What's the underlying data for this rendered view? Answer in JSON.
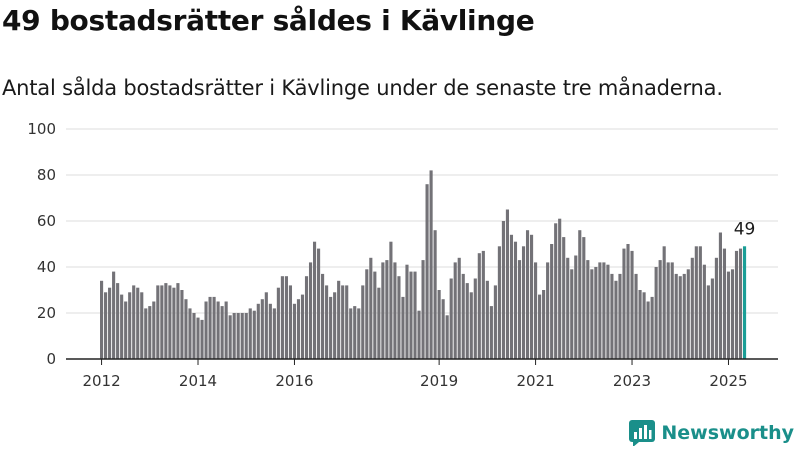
{
  "header": {
    "title": "49 bostadsrätter såldes i Kävlinge",
    "subtitle": "Antal sålda bostadsrätter i Kävlinge under de senaste tre månaderna."
  },
  "brand": {
    "name": "Newsworthy",
    "icon": "newsworthy-logo-icon"
  },
  "colors": {
    "bar": "#737277",
    "highlight": "#1a9e96",
    "grid": "#dddddd",
    "axis": "#222222",
    "brand": "#1a8f8a"
  },
  "chart_data": {
    "type": "bar",
    "x_tick_labels": [
      "2012",
      "2014",
      "2016",
      "2019",
      "2021",
      "2023",
      "2025"
    ],
    "x_tick_bar_index": [
      0,
      24,
      48,
      84,
      108,
      132,
      156
    ],
    "y_ticks": [
      0,
      20,
      40,
      60,
      80,
      100
    ],
    "ylim": [
      0,
      100
    ],
    "grid": true,
    "highlight_last": true,
    "last_value_label": "49",
    "values": [
      34,
      29,
      31,
      38,
      33,
      28,
      25,
      29,
      32,
      31,
      29,
      22,
      23,
      25,
      32,
      32,
      33,
      32,
      31,
      33,
      30,
      26,
      22,
      20,
      18,
      17,
      25,
      27,
      27,
      25,
      23,
      25,
      19,
      20,
      20,
      20,
      20,
      22,
      21,
      24,
      26,
      29,
      24,
      22,
      31,
      36,
      36,
      32,
      24,
      26,
      28,
      36,
      42,
      51,
      48,
      37,
      32,
      27,
      29,
      34,
      32,
      32,
      22,
      23,
      22,
      32,
      39,
      44,
      38,
      31,
      42,
      43,
      51,
      42,
      36,
      27,
      41,
      38,
      38,
      21,
      43,
      76,
      82,
      56,
      30,
      26,
      19,
      35,
      42,
      44,
      37,
      33,
      29,
      35,
      46,
      47,
      34,
      23,
      32,
      49,
      60,
      65,
      54,
      51,
      43,
      49,
      56,
      54,
      42,
      28,
      30,
      42,
      50,
      59,
      61,
      53,
      44,
      39,
      45,
      56,
      53,
      43,
      39,
      40,
      42,
      42,
      41,
      37,
      34,
      37,
      48,
      50,
      47,
      37,
      30,
      29,
      25,
      27,
      40,
      43,
      49,
      42,
      42,
      37,
      36,
      37,
      39,
      44,
      49,
      49,
      41,
      32,
      35,
      44,
      55,
      48,
      38,
      39,
      47,
      48,
      49
    ]
  }
}
